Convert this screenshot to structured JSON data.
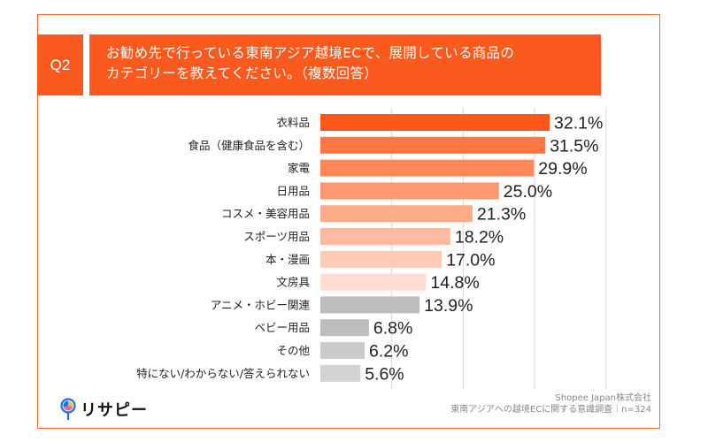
{
  "header": {
    "badge": "Q2",
    "title_lines": [
      "お勧め先で行っている東南アジア越境ECで、展開している商品の",
      "カテゴリーを教えてください。（複数回答）"
    ]
  },
  "footer": {
    "logo_text": "リサピー",
    "source_company": "Shopee Japan株式会社",
    "source_survey": "東南アジアへの越境ECに関する意識調査｜n=324"
  },
  "colors": {
    "frame": "#f26b2f",
    "header_bg": "#fa5a1e",
    "bar_colors": [
      "#fd571d",
      "#fe7744",
      "#fe885a",
      "#fe9870",
      "#feab88",
      "#febb9f",
      "#ffcbb5",
      "#ffddd0",
      "#bdbdbd",
      "#bdbdbd",
      "#cbcbcb",
      "#d3d3d3"
    ],
    "gridline": "#d9d9d9"
  },
  "chart_data": {
    "type": "bar",
    "orientation": "horizontal",
    "title": "お勧め先で行っている東南アジア越境ECで、展開している商品のカテゴリーを教えてください。（複数回答）",
    "categories": [
      "衣料品",
      "食品（健康食品を含む）",
      "家電",
      "日用品",
      "コスメ・美容用品",
      "スポーツ用品",
      "本・漫画",
      "文房具",
      "アニメ・ホビー関連",
      "ベビー用品",
      "その他",
      "特にない/わからない/答えられない"
    ],
    "values": [
      32.1,
      31.5,
      29.9,
      25.0,
      21.3,
      18.2,
      17.0,
      14.8,
      13.9,
      6.8,
      6.2,
      5.6
    ],
    "value_labels": [
      "32.1%",
      "31.5%",
      "29.9%",
      "25.0%",
      "21.3%",
      "18.2%",
      "17.0%",
      "14.8%",
      "13.9%",
      "6.8%",
      "6.2%",
      "5.6%"
    ],
    "unit": "%",
    "xlim": [
      0,
      40
    ],
    "gridlines": [
      10,
      20,
      30,
      40
    ],
    "grid": true,
    "legend": "none",
    "xlabel": "",
    "ylabel": ""
  }
}
